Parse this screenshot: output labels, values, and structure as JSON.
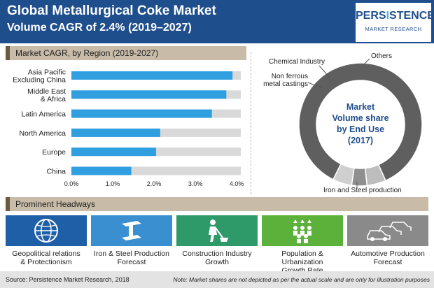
{
  "header": {
    "title_line1": "Global Metallurgical Coke Market",
    "title_line2": "Volume CAGR of 2.4% (2019–2027)",
    "logo_main_a": "PERS",
    "logo_main_b": "I",
    "logo_main_c": "STENCE",
    "logo_sub": "MARKET RESEARCH"
  },
  "colors": {
    "header_bg": "#1f4e8c",
    "bar_fill": "#2f9fe0",
    "bar_track": "#d9d9d9",
    "donut_main": "#5f5f5f",
    "section_bar": "#c8bca8"
  },
  "sections": {
    "cagr_title": "Market CAGR, by Region (2019-2027)",
    "headways_title": "Prominent Headways"
  },
  "chart_data": [
    {
      "type": "bar",
      "orientation": "horizontal",
      "title": "Market CAGR, by Region (2019-2027)",
      "categories": [
        [
          "Asia Pacific",
          "Excluding China"
        ],
        [
          "Middle East",
          "& Africa"
        ],
        [
          "Latin America"
        ],
        [
          "North America"
        ],
        [
          "Europe"
        ],
        [
          "China"
        ]
      ],
      "values": [
        3.9,
        3.75,
        3.4,
        2.15,
        2.05,
        1.45
      ],
      "xlim": [
        0,
        4.1
      ],
      "xticks": [
        "0.0%",
        "1.0%",
        "2.0%",
        "3.0%",
        "4.0%"
      ],
      "xtick_values": [
        0,
        1,
        2,
        3,
        4
      ],
      "grid": false
    },
    {
      "type": "pie",
      "subtype": "donut",
      "center_label": [
        "Market",
        "Volume share",
        "by End Use",
        "(2017)"
      ],
      "slices": [
        {
          "label": "Iron and Steel production",
          "value": 86,
          "color": "#5f5f5f"
        },
        {
          "label": "Non ferrous metal castings",
          "value": 5,
          "color": "#bdbdbd"
        },
        {
          "label": "Chemical Industry",
          "value": 4,
          "color": "#8f8f8f"
        },
        {
          "label": "Others",
          "value": 5,
          "color": "#cfcfcf"
        }
      ],
      "slice_labels": {
        "chemical": "Chemical Industry",
        "nonferrous": [
          "Non ferrous",
          "metal castings"
        ],
        "others": "Others",
        "iron": "Iron and Steel production"
      }
    }
  ],
  "headways": [
    {
      "label": [
        "Geopolitical relations",
        "& Protectionism"
      ],
      "icon": "globe-icon",
      "color": "#1f5fa8"
    },
    {
      "label": [
        "Iron & Steel Production",
        "Forecast"
      ],
      "icon": "steel-beam-icon",
      "color": "#3a8fd0"
    },
    {
      "label": [
        "Construction Industry",
        "Growth"
      ],
      "icon": "construction-worker-icon",
      "color": "#2e9a6a"
    },
    {
      "label": [
        "Population & Urbanization",
        "Growth Rate"
      ],
      "icon": "population-icon",
      "color": "#5cb13a"
    },
    {
      "label": [
        "Automotive Production",
        "Forecast"
      ],
      "icon": "cars-icon",
      "color": "#8a8a8a"
    }
  ],
  "footer": {
    "source": "Source: Persistence Market Research, 2018",
    "note": "Note: Market shares are not depicted as per the actual scale and are only for illustration purposes"
  }
}
